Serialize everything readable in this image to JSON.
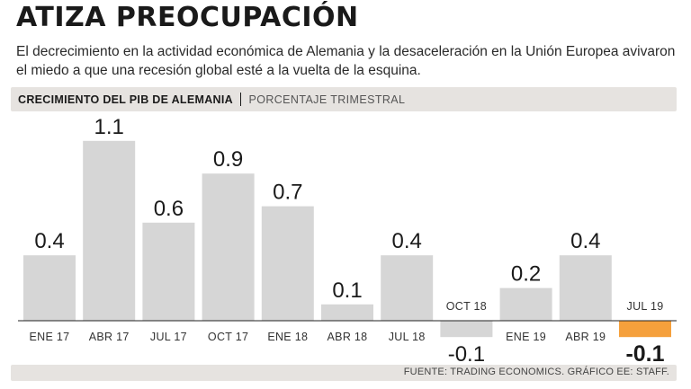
{
  "header": {
    "title": "ATIZA PREOCUPACIÓN",
    "subtitle": "El decrecimiento en la actividad económica de Alemania y la desaceleración en la Unión Europea avivaron el miedo a que una recesión global esté a la vuelta de la esquina."
  },
  "chart_meta": {
    "series_title": "CRECIMIENTO DEL PIB DE ALEMANIA",
    "unit": "PORCENTAJE TRIMESTRAL"
  },
  "colors": {
    "bar": "#d6d6d6",
    "highlight": "#f5a03c",
    "text": "#1a1a1a"
  },
  "chart_data": {
    "type": "bar",
    "title": "CRECIMIENTO DEL PIB DE ALEMANIA",
    "ylabel": "PORCENTAJE TRIMESTRAL",
    "xlabel": "",
    "categories": [
      "ENE 17",
      "ABR 17",
      "JUL 17",
      "OCT 17",
      "ENE 18",
      "ABR 18",
      "JUL 18",
      "OCT 18",
      "ENE 19",
      "ABR 19",
      "JUL 19"
    ],
    "values": [
      0.4,
      1.1,
      0.6,
      0.9,
      0.7,
      0.1,
      0.4,
      -0.1,
      0.2,
      0.4,
      -0.1
    ],
    "value_labels": [
      "0.4",
      "1.1",
      "0.6",
      "0.9",
      "0.7",
      "0.1",
      "0.4",
      "-0.1",
      "0.2",
      "0.4",
      "-0.1"
    ],
    "highlight_index": 10,
    "ylim": [
      -0.1,
      1.1
    ],
    "grid": false
  },
  "footer": {
    "source": "FUENTE: TRADING ECONOMICS. GRÁFICO EE: STAFF."
  }
}
